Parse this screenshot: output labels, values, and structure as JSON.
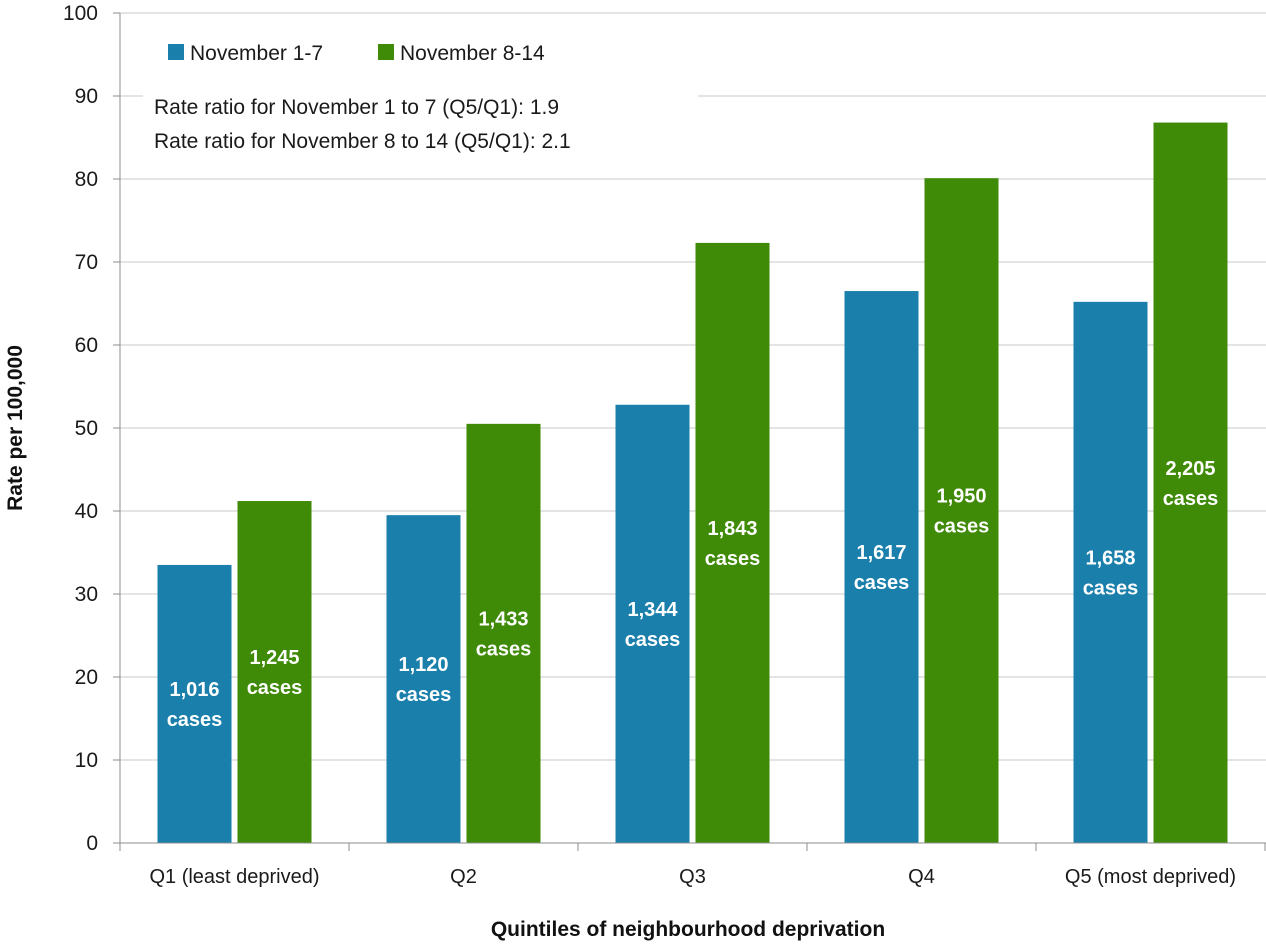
{
  "chart_data": {
    "type": "bar",
    "title": "",
    "xlabel": "Quintiles of neighbourhood deprivation",
    "ylabel": "Rate per 100,000",
    "ylim": [
      0,
      100
    ],
    "yticks": [
      0,
      10,
      20,
      30,
      40,
      50,
      60,
      70,
      80,
      90,
      100
    ],
    "grid": true,
    "legend_position": "top-left",
    "categories": [
      "Q1 (least deprived)",
      "Q2",
      "Q3",
      "Q4",
      "Q5 (most deprived)"
    ],
    "series": [
      {
        "name": "November 1-7",
        "color": "#1a7fab",
        "values": [
          33.5,
          39.5,
          52.8,
          66.5,
          65.2
        ],
        "labels": [
          [
            "1,016",
            "cases"
          ],
          [
            "1,120",
            "cases"
          ],
          [
            "1,344",
            "cases"
          ],
          [
            "1,617",
            "cases"
          ],
          [
            "1,658",
            "cases"
          ]
        ]
      },
      {
        "name": "November 8-14",
        "color": "#3f8a06",
        "values": [
          41.2,
          50.5,
          72.3,
          80.1,
          86.8
        ],
        "labels": [
          [
            "1,245",
            "cases"
          ],
          [
            "1,433",
            "cases"
          ],
          [
            "1,843",
            "cases"
          ],
          [
            "1,950",
            "cases"
          ],
          [
            "2,205",
            "cases"
          ]
        ]
      }
    ],
    "annotations": [
      "Rate ratio for November 1 to 7 (Q5/Q1): 1.9",
      "Rate ratio for November 8 to 14 (Q5/Q1): 2.1"
    ]
  }
}
